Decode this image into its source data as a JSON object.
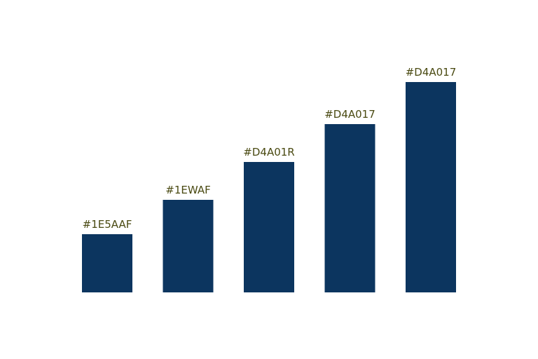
{
  "chart_data": {
    "type": "bar",
    "values": [
      83,
      132,
      186,
      240,
      300
    ],
    "bar_labels": [
      "#1E5AAF",
      "#1EWAF",
      "#D4A01R",
      "#D4A017",
      "#D4A017"
    ],
    "color": "#0c355f",
    "label_color": "#4a4a12"
  }
}
